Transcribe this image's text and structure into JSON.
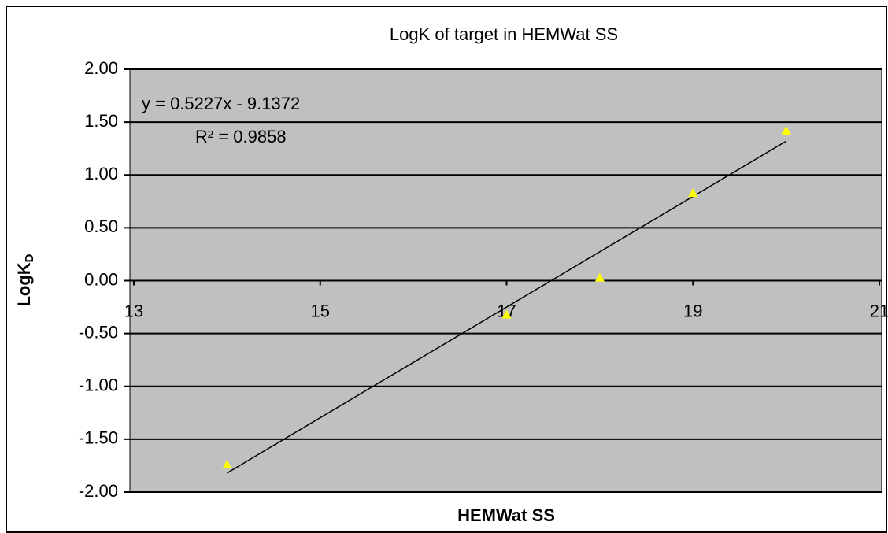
{
  "chart_data": {
    "type": "scatter",
    "title": "LogK of  target in HEMWat SS",
    "x_label": "HEMWat SS",
    "y_label": {
      "main": "LogK",
      "sub": "D"
    },
    "equation": "y = 0.5227x - 9.1372",
    "r_squared": "R² = 0.9858",
    "series": [
      {
        "name": "LogK",
        "color": "#ffff00",
        "x": [
          14,
          17,
          18,
          19,
          20
        ],
        "values": [
          -1.74,
          -0.32,
          0.03,
          0.83,
          1.42
        ]
      }
    ],
    "trendline": {
      "color": "#000000",
      "x": [
        14,
        20
      ],
      "values": [
        -1.82,
        1.32
      ]
    },
    "xlim": [
      13,
      21
    ],
    "xticks": [
      13,
      15,
      17,
      19,
      21
    ],
    "ylim": [
      -2,
      2
    ],
    "yticks": [
      {
        "value": -2,
        "label": "-2.00"
      },
      {
        "value": -1.5,
        "label": "-1.50"
      },
      {
        "value": -1,
        "label": "-1.00"
      },
      {
        "value": -0.5,
        "label": "-0.50"
      },
      {
        "value": 0,
        "label": "0.00"
      },
      {
        "value": 0.5,
        "label": "0.50"
      },
      {
        "value": 1,
        "label": "1.00"
      },
      {
        "value": 1.5,
        "label": "1.50"
      },
      {
        "value": 2,
        "label": "2.00"
      }
    ],
    "grid": true,
    "plot_background": "#c0c0c0"
  }
}
